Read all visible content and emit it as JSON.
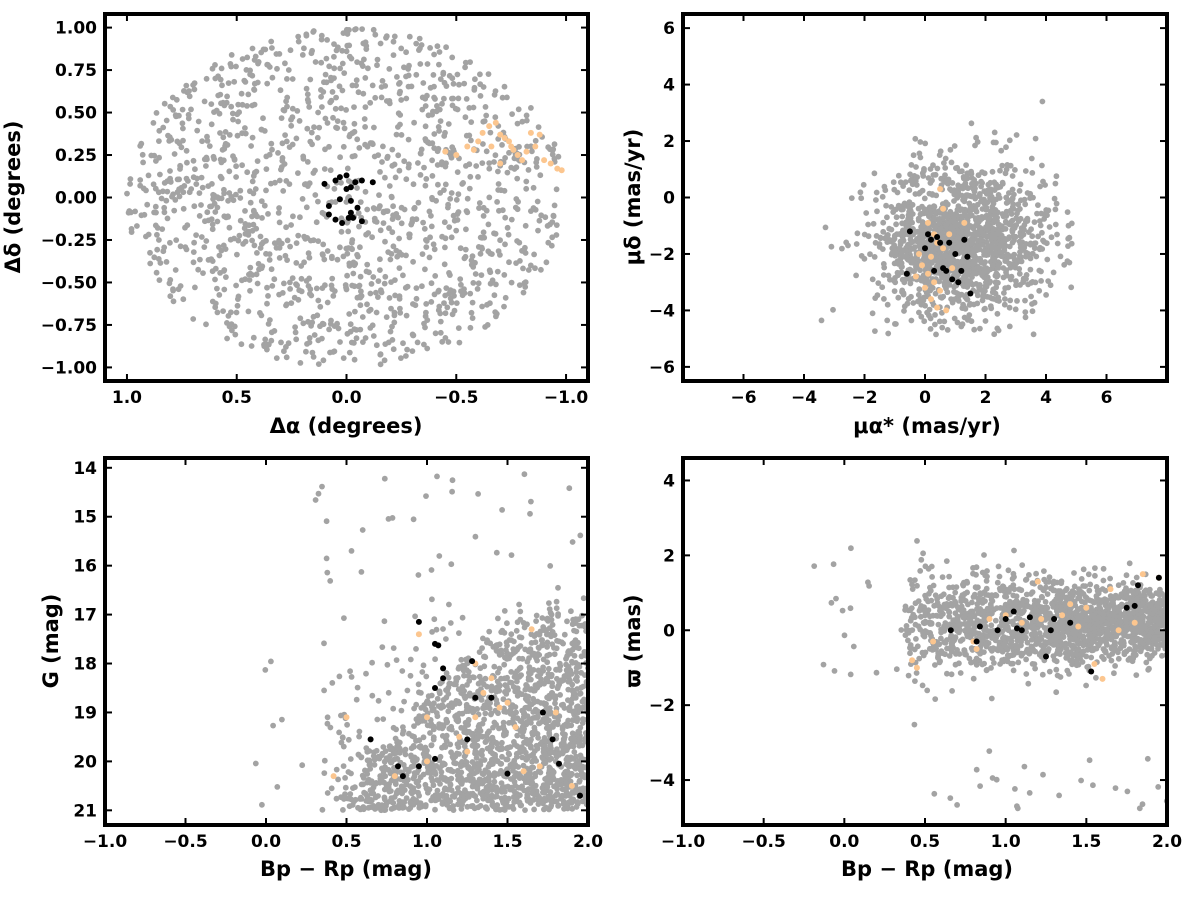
{
  "colors": {
    "field": "#a3a3a3",
    "member": "#000000",
    "highlight": "#fcc68f"
  },
  "chart_data": [
    {
      "type": "scatter",
      "id": "sky",
      "xlabel": "Δα (degrees)",
      "ylabel": "Δδ (degrees)",
      "xlim": [
        1.1,
        -1.1
      ],
      "ylim": [
        -1.08,
        1.08
      ],
      "x_inverted": true,
      "xticks": [
        1.0,
        0.5,
        0.0,
        -0.5,
        -1.0
      ],
      "xtick_labels": [
        "1.0",
        "0.5",
        "0.0",
        "−0.5",
        "−1.0"
      ],
      "yticks": [
        -1.0,
        -0.75,
        -0.5,
        -0.25,
        0.0,
        0.25,
        0.5,
        0.75,
        1.0
      ],
      "ytick_labels": [
        "−1.00",
        "−0.75",
        "−0.50",
        "−0.25",
        "0.00",
        "0.25",
        "0.50",
        "0.75",
        "1.00"
      ],
      "series": [
        {
          "role": "field",
          "color_key": "field",
          "count": 1400,
          "distribution": {
            "shape": "disk",
            "center": [
              0,
              0
            ],
            "radius": 1.0
          }
        },
        {
          "role": "highlight",
          "color_key": "highlight",
          "points": [
            [
              -0.45,
              0.27
            ],
            [
              -0.5,
              0.25
            ],
            [
              -0.55,
              0.3
            ],
            [
              -0.6,
              0.33
            ],
            [
              -0.62,
              0.38
            ],
            [
              -0.65,
              0.42
            ],
            [
              -0.68,
              0.44
            ],
            [
              -0.7,
              0.37
            ],
            [
              -0.72,
              0.35
            ],
            [
              -0.74,
              0.33
            ],
            [
              -0.75,
              0.3
            ],
            [
              -0.76,
              0.28
            ],
            [
              -0.78,
              0.25
            ],
            [
              -0.8,
              0.22
            ],
            [
              -0.82,
              0.27
            ],
            [
              -0.84,
              0.38
            ],
            [
              -0.88,
              0.37
            ],
            [
              -0.9,
              0.22
            ],
            [
              -0.93,
              0.2
            ],
            [
              -0.96,
              0.17
            ],
            [
              -0.98,
              0.16
            ],
            [
              -0.7,
              0.2
            ],
            [
              -0.58,
              0.28
            ],
            [
              -0.66,
              0.3
            ],
            [
              -0.86,
              0.3
            ]
          ]
        },
        {
          "role": "member",
          "color_key": "member",
          "points": [
            [
              0.1,
              0.08
            ],
            [
              0.05,
              0.1
            ],
            [
              0.03,
              0.12
            ],
            [
              0.0,
              0.13
            ],
            [
              -0.04,
              0.09
            ],
            [
              -0.07,
              0.1
            ],
            [
              -0.12,
              0.09
            ],
            [
              0.03,
              -0.01
            ],
            [
              -0.02,
              -0.02
            ],
            [
              -0.05,
              -0.06
            ],
            [
              -0.02,
              -0.09
            ],
            [
              -0.01,
              -0.12
            ],
            [
              0.02,
              -0.15
            ],
            [
              0.05,
              -0.13
            ],
            [
              0.08,
              -0.05
            ],
            [
              0.08,
              -0.1
            ],
            [
              -0.03,
              -0.12
            ],
            [
              -0.07,
              -0.14
            ],
            [
              0.0,
              0.05
            ],
            [
              -0.02,
              0.06
            ]
          ]
        }
      ]
    },
    {
      "type": "scatter",
      "id": "proper-motion",
      "xlabel": "μα* (mas/yr)",
      "ylabel": "μδ (mas/yr)",
      "xlim": [
        -8,
        8
      ],
      "ylim": [
        -6.5,
        6.5
      ],
      "xticks": [
        -6,
        -4,
        -2,
        0,
        2,
        4,
        6
      ],
      "xtick_labels": [
        "−6",
        "−4",
        "−2",
        "0",
        "2",
        "4",
        "6"
      ],
      "yticks": [
        -6,
        -4,
        -2,
        0,
        2,
        4,
        6
      ],
      "ytick_labels": [
        "−6",
        "−4",
        "−2",
        "0",
        "2",
        "4",
        "6"
      ],
      "series": [
        {
          "role": "field",
          "color_key": "field",
          "count": 1500,
          "distribution": {
            "shape": "gaussian",
            "center": [
              1.4,
              -1.4
            ],
            "sigma": [
              1.5,
              1.4
            ],
            "clip_x": [
              -4.8,
              4.9
            ],
            "clip_y": [
              -5.0,
              4.6
            ],
            "core": {
              "center": [
                0.5,
                -2.0
              ],
              "sigma": [
                0.8,
                0.9
              ],
              "count": 350
            }
          }
        },
        {
          "role": "highlight",
          "color_key": "highlight",
          "points": [
            [
              0.1,
              -0.9
            ],
            [
              0.3,
              -1.3
            ],
            [
              0.4,
              -1.6
            ],
            [
              0.6,
              -1.8
            ],
            [
              0.2,
              -2.1
            ],
            [
              -0.1,
              -2.4
            ],
            [
              0.1,
              -2.7
            ],
            [
              0.3,
              -3.0
            ],
            [
              0.5,
              -3.3
            ],
            [
              0.2,
              -3.6
            ],
            [
              0.4,
              -3.9
            ],
            [
              0.7,
              -4.0
            ],
            [
              0.6,
              -0.4
            ],
            [
              0.5,
              0.3
            ],
            [
              0.8,
              -1.3
            ],
            [
              -0.3,
              -2.8
            ],
            [
              -0.2,
              -2.0
            ],
            [
              0.9,
              -2.5
            ],
            [
              1.3,
              -0.9
            ],
            [
              0.0,
              -3.2
            ]
          ]
        },
        {
          "role": "member",
          "color_key": "member",
          "points": [
            [
              -0.5,
              -1.2
            ],
            [
              0.1,
              -1.3
            ],
            [
              0.2,
              -1.5
            ],
            [
              0.4,
              -1.4
            ],
            [
              0.5,
              -1.6
            ],
            [
              0.8,
              -1.6
            ],
            [
              1.3,
              -1.5
            ],
            [
              -0.6,
              -2.7
            ],
            [
              0.3,
              -2.6
            ],
            [
              0.6,
              -2.5
            ],
            [
              0.7,
              -2.6
            ],
            [
              1.0,
              -2.0
            ],
            [
              1.4,
              -2.1
            ],
            [
              1.2,
              -2.6
            ],
            [
              1.1,
              -3.0
            ],
            [
              1.5,
              -3.4
            ],
            [
              0.9,
              -2.9
            ],
            [
              0.0,
              -1.8
            ]
          ]
        }
      ]
    },
    {
      "type": "scatter",
      "id": "cmd",
      "xlabel": "Bp − Rp (mag)",
      "ylabel": "G (mag)",
      "xlim": [
        -1.0,
        2.0
      ],
      "ylim": [
        21.3,
        13.8
      ],
      "y_inverted": true,
      "xticks": [
        -1.0,
        -0.5,
        0.0,
        0.5,
        1.0,
        1.5,
        2.0
      ],
      "xtick_labels": [
        "−1.0",
        "−0.5",
        "0.0",
        "0.5",
        "1.0",
        "1.5",
        "2.0"
      ],
      "yticks": [
        14,
        15,
        16,
        17,
        18,
        19,
        20,
        21
      ],
      "ytick_labels": [
        "14",
        "15",
        "16",
        "17",
        "18",
        "19",
        "20",
        "21"
      ],
      "series": [
        {
          "role": "field",
          "color_key": "field",
          "count": 1700,
          "distribution": {
            "shape": "cmd",
            "x_range": [
              0.35,
              2.0
            ],
            "y_range": [
              16.0,
              21.0
            ]
          }
        },
        {
          "role": "highlight",
          "color_key": "highlight",
          "points": [
            [
              0.42,
              20.3
            ],
            [
              0.5,
              19.1
            ],
            [
              0.8,
              20.3
            ],
            [
              1.0,
              20.0
            ],
            [
              1.2,
              19.5
            ],
            [
              1.25,
              19.8
            ],
            [
              1.3,
              19.1
            ],
            [
              1.35,
              18.6
            ],
            [
              1.4,
              18.3
            ],
            [
              1.45,
              18.9
            ],
            [
              1.55,
              19.3
            ],
            [
              1.6,
              20.2
            ],
            [
              1.7,
              20.1
            ],
            [
              1.8,
              19.0
            ],
            [
              1.9,
              20.5
            ],
            [
              1.3,
              18.0
            ],
            [
              1.0,
              19.1
            ],
            [
              1.65,
              17.3
            ],
            [
              0.95,
              17.4
            ],
            [
              1.5,
              18.8
            ]
          ]
        },
        {
          "role": "member",
          "color_key": "member",
          "points": [
            [
              0.65,
              19.55
            ],
            [
              0.82,
              20.1
            ],
            [
              0.85,
              20.3
            ],
            [
              0.95,
              20.1
            ],
            [
              1.05,
              19.95
            ],
            [
              1.05,
              18.5
            ],
            [
              1.1,
              18.3
            ],
            [
              1.1,
              18.1
            ],
            [
              1.05,
              17.6
            ],
            [
              1.07,
              17.63
            ],
            [
              0.95,
              17.15
            ],
            [
              1.25,
              19.55
            ],
            [
              1.3,
              18.7
            ],
            [
              1.4,
              18.7
            ],
            [
              1.28,
              17.95
            ],
            [
              1.5,
              20.25
            ],
            [
              1.72,
              19.0
            ],
            [
              1.78,
              19.55
            ],
            [
              1.82,
              20.05
            ],
            [
              1.95,
              20.7
            ]
          ]
        }
      ]
    },
    {
      "type": "scatter",
      "id": "parallax",
      "xlabel": "Bp − Rp (mag)",
      "ylabel": "ϖ (mas)",
      "xlim": [
        -1.0,
        2.0
      ],
      "ylim": [
        -5.2,
        4.6
      ],
      "xticks": [
        -1.0,
        -0.5,
        0.0,
        0.5,
        1.0,
        1.5,
        2.0
      ],
      "xtick_labels": [
        "−1.0",
        "−0.5",
        "0.0",
        "0.5",
        "1.0",
        "1.5",
        "2.0"
      ],
      "yticks": [
        -4,
        -2,
        0,
        2,
        4
      ],
      "ytick_labels": [
        "−4",
        "−2",
        "0",
        "2",
        "4"
      ],
      "series": [
        {
          "role": "field",
          "color_key": "field",
          "count": 1700,
          "distribution": {
            "shape": "band",
            "x_range": [
              0.35,
              2.0
            ],
            "center_y": 0.2,
            "sigma_y": 0.55
          }
        },
        {
          "role": "highlight",
          "color_key": "highlight",
          "points": [
            [
              0.42,
              -0.8
            ],
            [
              0.45,
              -1.0
            ],
            [
              0.55,
              -0.3
            ],
            [
              0.8,
              -0.3
            ],
            [
              0.82,
              -0.5
            ],
            [
              0.9,
              0.3
            ],
            [
              1.0,
              0.4
            ],
            [
              1.1,
              0.2
            ],
            [
              1.2,
              1.3
            ],
            [
              1.22,
              0.3
            ],
            [
              1.35,
              0.4
            ],
            [
              1.4,
              0.7
            ],
            [
              1.45,
              0.1
            ],
            [
              1.5,
              0.6
            ],
            [
              1.55,
              -0.9
            ],
            [
              1.6,
              -1.3
            ],
            [
              1.65,
              1.1
            ],
            [
              1.7,
              0.0
            ],
            [
              1.8,
              0.2
            ],
            [
              1.85,
              1.5
            ],
            [
              1.95,
              1.4
            ]
          ]
        },
        {
          "role": "member",
          "color_key": "member",
          "points": [
            [
              0.66,
              0.0
            ],
            [
              0.82,
              -0.3
            ],
            [
              0.84,
              0.1
            ],
            [
              0.95,
              0.0
            ],
            [
              1.0,
              0.3
            ],
            [
              1.05,
              0.5
            ],
            [
              1.07,
              0.05
            ],
            [
              1.1,
              0.0
            ],
            [
              1.15,
              0.35
            ],
            [
              1.25,
              -0.7
            ],
            [
              1.28,
              0.0
            ],
            [
              1.3,
              0.3
            ],
            [
              1.4,
              0.2
            ],
            [
              1.53,
              -1.1
            ],
            [
              1.75,
              0.6
            ],
            [
              1.8,
              0.65
            ],
            [
              1.82,
              1.2
            ],
            [
              1.95,
              1.4
            ]
          ]
        }
      ]
    }
  ]
}
